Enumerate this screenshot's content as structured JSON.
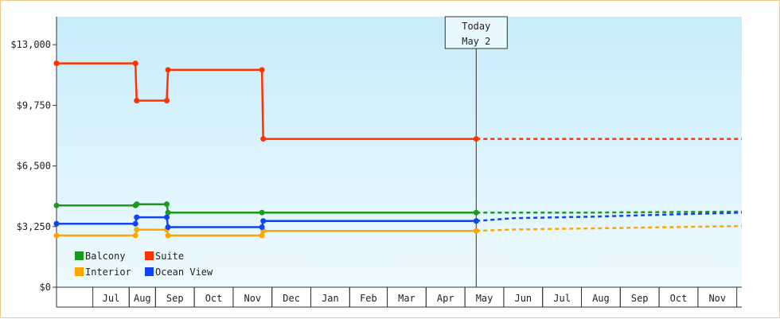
{
  "chart_data": {
    "type": "line",
    "title": "",
    "xlabel": "",
    "ylabel": "",
    "ylim": [
      0,
      14500
    ],
    "y_ticks": [
      {
        "value": 0,
        "label": "$0"
      },
      {
        "value": 3250,
        "label": "$3,250"
      },
      {
        "value": 6500,
        "label": "$6,500"
      },
      {
        "value": 9750,
        "label": "$9,750"
      },
      {
        "value": 13000,
        "label": "$13,000"
      }
    ],
    "x_start": "2024-06-01",
    "x_end": "2025-11-30",
    "month_labels": [
      {
        "label": "Jul",
        "from": "2024-06-30",
        "to": "2024-07-29"
      },
      {
        "label": "Aug",
        "from": "2024-07-29",
        "to": "2024-08-19"
      },
      {
        "label": "Sep",
        "from": "2024-08-19",
        "to": "2024-09-19"
      },
      {
        "label": "Oct",
        "from": "2024-09-19",
        "to": "2024-10-20"
      },
      {
        "label": "Nov",
        "from": "2024-10-20",
        "to": "2024-11-20"
      },
      {
        "label": "Dec",
        "from": "2024-11-20",
        "to": "2024-12-21"
      },
      {
        "label": "Jan",
        "from": "2024-12-21",
        "to": "2025-01-21"
      },
      {
        "label": "Feb",
        "from": "2025-01-21",
        "to": "2025-02-20"
      },
      {
        "label": "Mar",
        "from": "2025-02-20",
        "to": "2025-03-23"
      },
      {
        "label": "Apr",
        "from": "2025-03-23",
        "to": "2025-04-23"
      },
      {
        "label": "May",
        "from": "2025-04-23",
        "to": "2025-05-24"
      },
      {
        "label": "Jun",
        "from": "2025-05-24",
        "to": "2025-06-24"
      },
      {
        "label": "Jul",
        "from": "2025-06-24",
        "to": "2025-07-25"
      },
      {
        "label": "Aug",
        "from": "2025-07-25",
        "to": "2025-08-25"
      },
      {
        "label": "Sep",
        "from": "2025-08-25",
        "to": "2025-09-25"
      },
      {
        "label": "Oct",
        "from": "2025-09-25",
        "to": "2025-10-26"
      },
      {
        "label": "Nov",
        "from": "2025-10-26",
        "to": "2025-11-26"
      }
    ],
    "today": {
      "line1": "Today",
      "line2": "May 2",
      "date": "2025-05-02"
    },
    "series": [
      {
        "name": "Balcony",
        "color": "#1a9a1a",
        "points": [
          [
            "2024-06-01",
            4380
          ],
          [
            "2024-08-03",
            4380
          ],
          [
            "2024-08-04",
            4450
          ],
          [
            "2024-08-28",
            4450
          ],
          [
            "2024-08-29",
            4000
          ],
          [
            "2024-11-12",
            4000
          ],
          [
            "2025-05-02",
            4000
          ]
        ],
        "projection": [
          [
            "2025-05-02",
            4000
          ],
          [
            "2025-08-01",
            4000
          ],
          [
            "2025-11-30",
            4050
          ]
        ]
      },
      {
        "name": "Suite",
        "color": "#ff3300",
        "points": [
          [
            "2024-06-01",
            12000
          ],
          [
            "2024-08-03",
            12000
          ],
          [
            "2024-08-04",
            10000
          ],
          [
            "2024-08-28",
            10000
          ],
          [
            "2024-08-29",
            11650
          ],
          [
            "2024-11-12",
            11650
          ],
          [
            "2024-11-13",
            7950
          ],
          [
            "2025-05-02",
            7950
          ]
        ],
        "projection": [
          [
            "2025-05-02",
            7950
          ],
          [
            "2025-11-30",
            7950
          ]
        ]
      },
      {
        "name": "Interior",
        "color": "#ffa500",
        "points": [
          [
            "2024-06-01",
            2770
          ],
          [
            "2024-08-03",
            2770
          ],
          [
            "2024-08-04",
            3080
          ],
          [
            "2024-08-28",
            3080
          ],
          [
            "2024-08-29",
            2770
          ],
          [
            "2024-11-12",
            2770
          ],
          [
            "2024-11-13",
            3020
          ],
          [
            "2025-05-02",
            3020
          ]
        ],
        "projection": [
          [
            "2025-05-02",
            3020
          ],
          [
            "2025-06-01",
            3090
          ],
          [
            "2025-08-01",
            3150
          ],
          [
            "2025-11-30",
            3280
          ]
        ]
      },
      {
        "name": "Ocean View",
        "color": "#1144ee",
        "points": [
          [
            "2024-06-01",
            3400
          ],
          [
            "2024-08-03",
            3400
          ],
          [
            "2024-08-04",
            3750
          ],
          [
            "2024-08-28",
            3750
          ],
          [
            "2024-08-29",
            3220
          ],
          [
            "2024-11-12",
            3220
          ],
          [
            "2024-11-13",
            3550
          ],
          [
            "2025-05-02",
            3550
          ]
        ],
        "projection": [
          [
            "2025-05-02",
            3550
          ],
          [
            "2025-06-01",
            3700
          ],
          [
            "2025-08-01",
            3780
          ],
          [
            "2025-11-30",
            4000
          ]
        ]
      }
    ],
    "legend_order": [
      "Balcony",
      "Suite",
      "Interior",
      "Ocean View"
    ],
    "legend_position": "bottom-left",
    "grid": false,
    "background": {
      "top": "#c8ecfb",
      "bottom": "#eefaff"
    }
  }
}
